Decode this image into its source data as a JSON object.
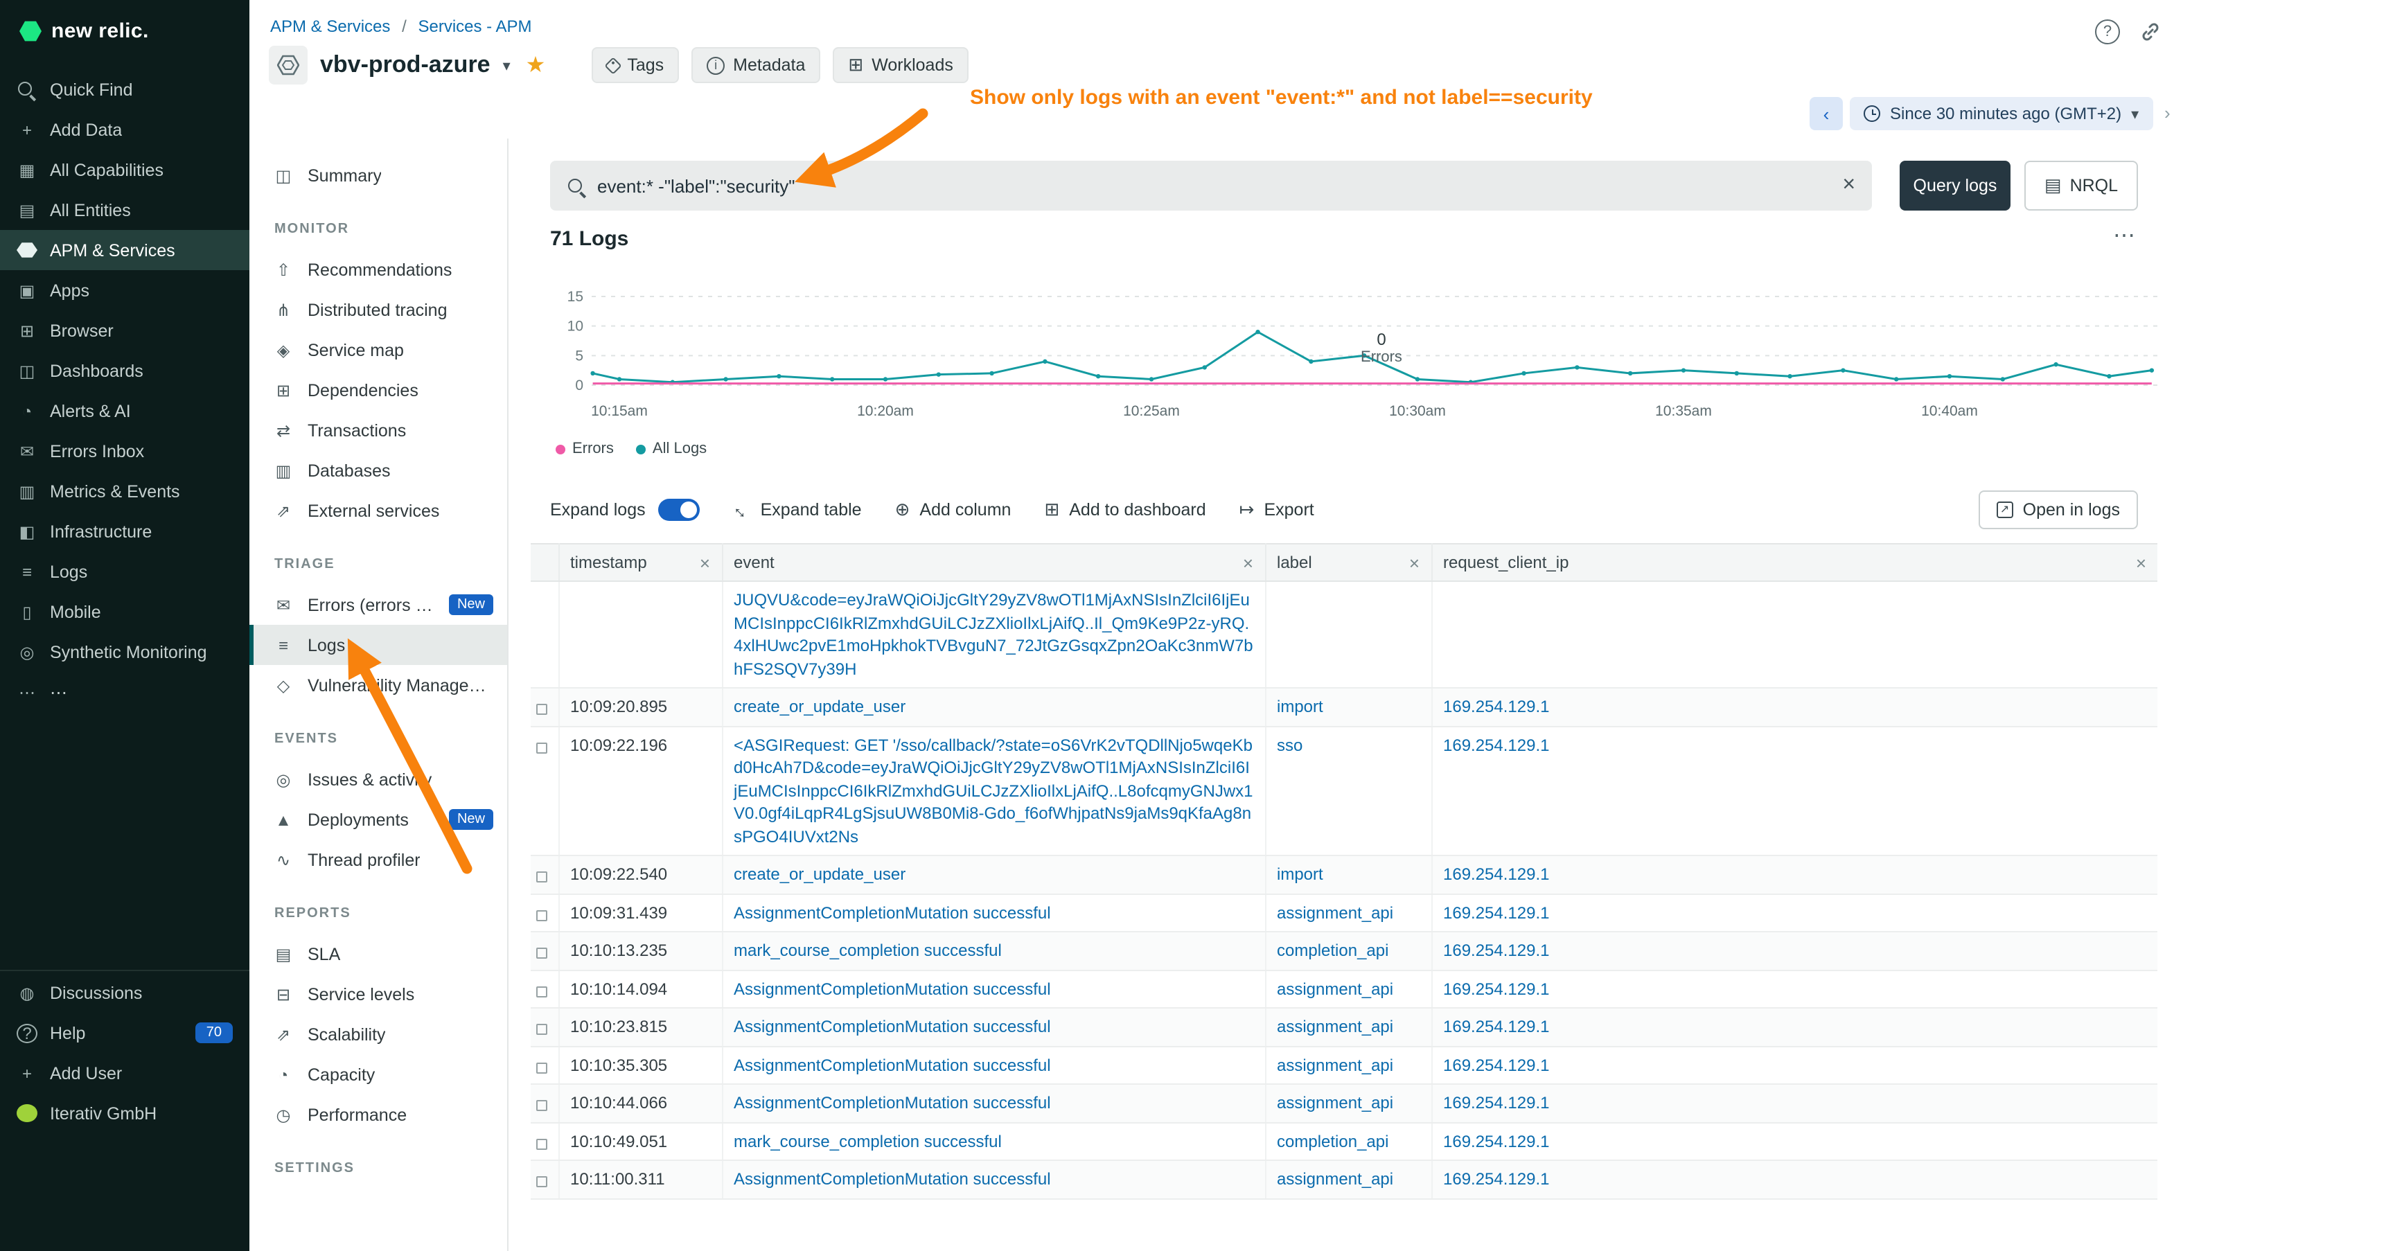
{
  "colors": {
    "brand_green": "#1ce783",
    "link_blue": "#0b6bad",
    "annotation_orange": "#f8820d",
    "errors_pink": "#ef5aa7",
    "all_logs_teal": "#149ba1",
    "badge_blue": "#1763c4"
  },
  "sidebar": {
    "brand": "new relic.",
    "items": [
      {
        "label": "Quick Find",
        "icon": "search-icon"
      },
      {
        "label": "Add Data",
        "icon": "plus-icon"
      },
      {
        "label": "All Capabilities",
        "icon": "grid-icon"
      },
      {
        "label": "All Entities",
        "icon": "layers-icon"
      },
      {
        "label": "APM & Services",
        "icon": "hexagon-icon",
        "active": true
      },
      {
        "label": "Apps",
        "icon": "apps-icon"
      },
      {
        "label": "Browser",
        "icon": "browser-icon"
      },
      {
        "label": "Dashboards",
        "icon": "dashboard-icon"
      },
      {
        "label": "Alerts & AI",
        "icon": "alerts-icon"
      },
      {
        "label": "Errors Inbox",
        "icon": "inbox-icon"
      },
      {
        "label": "Metrics & Events",
        "icon": "metrics-icon"
      },
      {
        "label": "Infrastructure",
        "icon": "infrastructure-icon"
      },
      {
        "label": "Logs",
        "icon": "logs-icon"
      },
      {
        "label": "Mobile",
        "icon": "mobile-icon"
      },
      {
        "label": "Synthetic Monitoring",
        "icon": "synthetic-icon"
      },
      {
        "label": "⋯",
        "icon": "more-icon"
      }
    ],
    "bottom_items": [
      {
        "label": "Discussions",
        "icon": "discussions-icon"
      },
      {
        "label": "Help",
        "icon": "help-icon",
        "badge": "70"
      },
      {
        "label": "Add User",
        "icon": "add-user-icon"
      },
      {
        "label": "Iterativ GmbH",
        "icon": "account-icon"
      }
    ]
  },
  "subnav": {
    "sections": [
      {
        "title": "",
        "items": [
          {
            "label": "Summary",
            "icon": "summary-icon"
          }
        ]
      },
      {
        "title": "MONITOR",
        "items": [
          {
            "label": "Recommendations",
            "icon": "thumbs-up-icon"
          },
          {
            "label": "Distributed tracing",
            "icon": "tracing-icon"
          },
          {
            "label": "Service map",
            "icon": "map-icon"
          },
          {
            "label": "Dependencies",
            "icon": "dependencies-icon"
          },
          {
            "label": "Transactions",
            "icon": "transactions-icon"
          },
          {
            "label": "Databases",
            "icon": "database-icon"
          },
          {
            "label": "External services",
            "icon": "external-icon"
          }
        ]
      },
      {
        "title": "TRIAGE",
        "items": [
          {
            "label": "Errors (errors inb…",
            "icon": "errors-icon",
            "badge": "New"
          },
          {
            "label": "Logs",
            "icon": "logs-icon",
            "active": true
          },
          {
            "label": "Vulnerability Management",
            "icon": "shield-icon"
          }
        ]
      },
      {
        "title": "EVENTS",
        "items": [
          {
            "label": "Issues & activity",
            "icon": "issues-icon"
          },
          {
            "label": "Deployments",
            "icon": "deployments-icon",
            "badge": "New"
          },
          {
            "label": "Thread profiler",
            "icon": "profiler-icon"
          }
        ]
      },
      {
        "title": "REPORTS",
        "items": [
          {
            "label": "SLA",
            "icon": "sla-icon"
          },
          {
            "label": "Service levels",
            "icon": "levels-icon"
          },
          {
            "label": "Scalability",
            "icon": "scalability-icon"
          },
          {
            "label": "Capacity",
            "icon": "capacity-icon"
          },
          {
            "label": "Performance",
            "icon": "performance-icon"
          }
        ]
      },
      {
        "title": "SETTINGS",
        "items": []
      }
    ]
  },
  "header": {
    "breadcrumb": {
      "part1": "APM & Services",
      "separator": "/",
      "part2": "Services - APM"
    },
    "entity_name": "vbv-prod-azure",
    "actions": {
      "tags": "Tags",
      "metadata": "Metadata",
      "workloads": "Workloads"
    },
    "time_picker": "Since 30 minutes ago (GMT+2)"
  },
  "annotation": {
    "text": "Show only logs with an event \"event:*\" and not label==security"
  },
  "query_bar": {
    "value": "event:* -\"label\":\"security\"",
    "query_button": "Query logs",
    "nrql_button": "NRQL"
  },
  "results": {
    "count_label": "71 Logs",
    "more": "⋯"
  },
  "chart_data": {
    "type": "line",
    "title": "71 Logs",
    "x_minutes": [
      14.5,
      15,
      16,
      17,
      18,
      19,
      20,
      21,
      22,
      23,
      24,
      25,
      26,
      27,
      28,
      29,
      30,
      31,
      32,
      33,
      34,
      35,
      36,
      37,
      38,
      39,
      40,
      41,
      42,
      43,
      43.8
    ],
    "series": [
      {
        "name": "Errors",
        "color": "#ef5aa7",
        "values": [
          0,
          0,
          0,
          0,
          0,
          0,
          0,
          0,
          0,
          0,
          0,
          0,
          0,
          0,
          0,
          0,
          0,
          0,
          0,
          0,
          0,
          0,
          0,
          0,
          0,
          0,
          0,
          0,
          0,
          0,
          0
        ]
      },
      {
        "name": "All Logs",
        "color": "#149ba1",
        "values": [
          2,
          1,
          0.5,
          1,
          1.5,
          1,
          1,
          1.8,
          2,
          4,
          1.5,
          1,
          3,
          9,
          4,
          5,
          1,
          0.5,
          2,
          3,
          2,
          2.5,
          2,
          1.5,
          2.5,
          1,
          1.5,
          1,
          3.5,
          1.5,
          2.5
        ]
      }
    ],
    "x_tick_minutes": [
      15,
      20,
      25,
      30,
      35,
      40
    ],
    "x_tick_labels": [
      "10:15am",
      "10:20am",
      "10:25am",
      "10:30am",
      "10:35am",
      "10:40am"
    ],
    "ylim": [
      0,
      15
    ],
    "y_ticks": [
      0,
      5,
      10,
      15
    ],
    "grid": "dashed-horizontal",
    "legend_position": "bottom-left",
    "tooltip": {
      "value": "0",
      "label": "Errors"
    }
  },
  "toolbar": {
    "expand_logs": "Expand logs",
    "expand_table": "Expand table",
    "add_column": "Add column",
    "add_to_dashboard": "Add to dashboard",
    "export": "Export",
    "open_in_logs": "Open in logs"
  },
  "table": {
    "columns": [
      "timestamp",
      "event",
      "label",
      "request_client_ip"
    ],
    "rows": [
      {
        "timestamp": "",
        "event": "JUQVU&code=eyJraWQiOiJjcGltY29yZV8wOTl1MjAxNSIsInZlciI6IjEuMCIsInppcCI6IkRlZmxhdGUiLCJzZXlioIlxLjAifQ..Il_Qm9Ke9P2z-yRQ.4xlHUwc2pvE1moHpkhokTVBvguN7_72JtGzGsqxZpn2OaKc3nmW7bhFS2SQV7y39H",
        "label": "",
        "ip": ""
      },
      {
        "timestamp": "10:09:20.895",
        "event": "create_or_update_user",
        "label": "import",
        "ip": "169.254.129.1"
      },
      {
        "timestamp": "10:09:22.196",
        "event": "<ASGIRequest: GET '/sso/callback/?state=oS6VrK2vTQDllNjo5wqeKbd0HcAh7D&code=eyJraWQiOiJjcGltY29yZV8wOTl1MjAxNSIsInZlciI6IjEuMCIsInppcCI6IkRlZmxhdGUiLCJzZXlioIlxLjAifQ..L8ofcqmyGNJwx1V0.0gf4iLqpR4LgSjsuUW8B0Mi8-Gdo_f6ofWhjpatNs9jaMs9qKfaAg8nsPGO4IUVxt2Ns",
        "label": "sso",
        "ip": "169.254.129.1"
      },
      {
        "timestamp": "10:09:22.540",
        "event": "create_or_update_user",
        "label": "import",
        "ip": "169.254.129.1"
      },
      {
        "timestamp": "10:09:31.439",
        "event": "AssignmentCompletionMutation successful",
        "label": "assignment_api",
        "ip": "169.254.129.1"
      },
      {
        "timestamp": "10:10:13.235",
        "event": "mark_course_completion successful",
        "label": "completion_api",
        "ip": "169.254.129.1"
      },
      {
        "timestamp": "10:10:14.094",
        "event": "AssignmentCompletionMutation successful",
        "label": "assignment_api",
        "ip": "169.254.129.1"
      },
      {
        "timestamp": "10:10:23.815",
        "event": "AssignmentCompletionMutation successful",
        "label": "assignment_api",
        "ip": "169.254.129.1"
      },
      {
        "timestamp": "10:10:35.305",
        "event": "AssignmentCompletionMutation successful",
        "label": "assignment_api",
        "ip": "169.254.129.1"
      },
      {
        "timestamp": "10:10:44.066",
        "event": "AssignmentCompletionMutation successful",
        "label": "assignment_api",
        "ip": "169.254.129.1"
      },
      {
        "timestamp": "10:10:49.051",
        "event": "mark_course_completion successful",
        "label": "completion_api",
        "ip": "169.254.129.1"
      },
      {
        "timestamp": "10:11:00.311",
        "event": "AssignmentCompletionMutation successful",
        "label": "assignment_api",
        "ip": "169.254.129.1"
      }
    ]
  }
}
